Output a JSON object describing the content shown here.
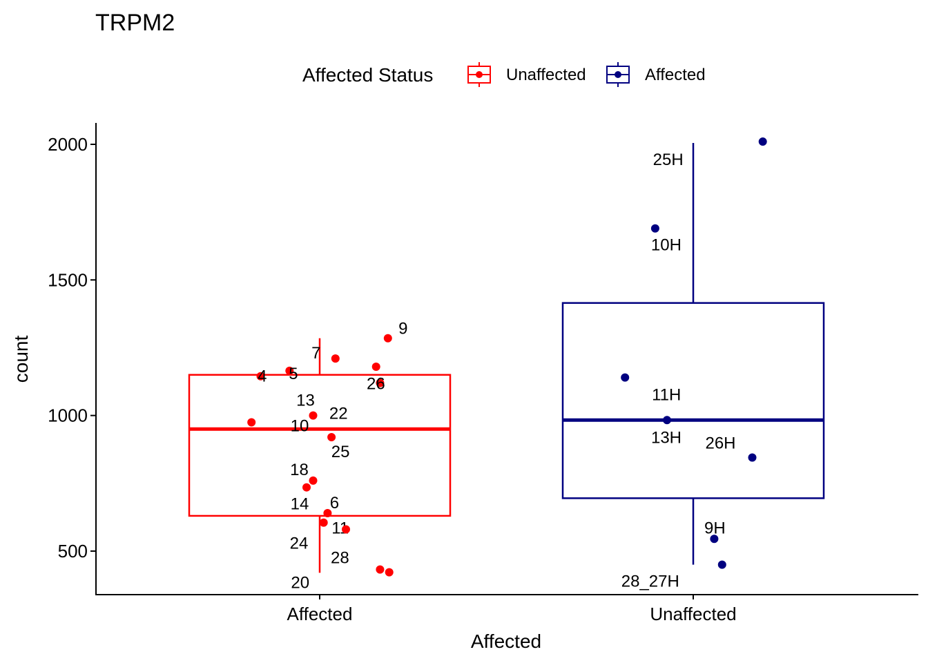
{
  "chart_data": {
    "type": "boxplot",
    "title": "TRPM2",
    "xlabel": "Affected",
    "ylabel": "count",
    "ylim": [
      342,
      2084
    ],
    "yticks": [
      500,
      1000,
      1500,
      2000
    ],
    "categories": [
      "Affected",
      "Unaffected"
    ],
    "legend": {
      "title": "Affected Status",
      "position": "top",
      "entries": [
        {
          "label": "Unaffected",
          "color": "#ff0000"
        },
        {
          "label": "Affected",
          "color": "#000080"
        }
      ]
    },
    "grid": false,
    "groups": [
      {
        "category": "Affected",
        "color": "#ff0000",
        "box": {
          "whisker_low": 420,
          "q1": 630,
          "median": 950,
          "q3": 1150,
          "whisker_high": 1285
        },
        "points": [
          {
            "jitter": 0.52,
            "y": 1285,
            "label": "9"
          },
          {
            "jitter": 0.12,
            "y": 1210,
            "label": "7"
          },
          {
            "jitter": 0.43,
            "y": 1180,
            "label": ""
          },
          {
            "jitter": -0.23,
            "y": 1165,
            "label": "5"
          },
          {
            "jitter": -0.45,
            "y": 1145,
            "label": "4"
          },
          {
            "jitter": 0.46,
            "y": 1120,
            "label": "26"
          },
          {
            "jitter": -0.05,
            "y": 1000,
            "label": "13"
          },
          {
            "jitter": -0.52,
            "y": 975,
            "label": "22"
          },
          {
            "jitter": 0.09,
            "y": 920,
            "label": "25"
          },
          {
            "jitter": -0.05,
            "y": 760,
            "label": "18"
          },
          {
            "jitter": -0.1,
            "y": 735,
            "label": "14"
          },
          {
            "jitter": 0.06,
            "y": 640,
            "label": "6"
          },
          {
            "jitter": 0.03,
            "y": 605,
            "label": "11"
          },
          {
            "jitter": 0.2,
            "y": 580,
            "label": "24"
          },
          {
            "jitter": 0.46,
            "y": 432,
            "label": "28"
          },
          {
            "jitter": 0.53,
            "y": 422,
            "label": "20"
          }
        ],
        "extra_labels": [
          {
            "text": "10",
            "y": 960
          }
        ]
      },
      {
        "category": "Unaffected",
        "color": "#000080",
        "box": {
          "whisker_low": 450,
          "q1": 695,
          "median": 983,
          "q3": 1415,
          "whisker_high": 2005
        },
        "points": [
          {
            "jitter": 0.53,
            "y": 2010,
            "label": "25H"
          },
          {
            "jitter": -0.29,
            "y": 1690,
            "label": "10H"
          },
          {
            "jitter": -0.52,
            "y": 1140,
            "label": "11H"
          },
          {
            "jitter": -0.2,
            "y": 983,
            "label": "13H"
          },
          {
            "jitter": 0.45,
            "y": 845,
            "label": "26H"
          },
          {
            "jitter": 0.16,
            "y": 545,
            "label": "9H"
          },
          {
            "jitter": 0.22,
            "y": 450,
            "label": "28_27H"
          }
        ]
      }
    ]
  }
}
